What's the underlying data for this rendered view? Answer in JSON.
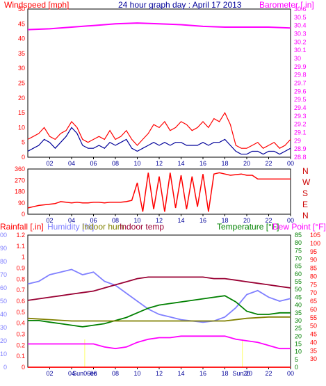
{
  "title": "24 hour graph day : April 17 2013",
  "colors": {
    "wind": "#ff0000",
    "wind_avg": "#000099",
    "baro": "#ff00ff",
    "rain": "#ff0000",
    "humidity": "#8080ff",
    "indoor_hum": "#808000",
    "indoor_temp": "#990033",
    "temperature": "#008000",
    "dew": "#ff00ff",
    "sunrise": "#ffff66",
    "frame": "#000000"
  },
  "x_ticks": [
    "02",
    "04",
    "06",
    "08",
    "10",
    "12",
    "14",
    "16",
    "18",
    "20",
    "22",
    "00"
  ],
  "chart_data": [
    {
      "type": "line",
      "labels": {
        "left": "Windspeed [mph]",
        "right": "Barometer [ in]"
      },
      "y_left": {
        "min": 0,
        "max": 50,
        "ticks": [
          0,
          5,
          10,
          15,
          20,
          25,
          30,
          35,
          40,
          45,
          50
        ]
      },
      "y_right": {
        "min": 28.8,
        "max": 30.6,
        "ticks": [
          "28.8",
          "28.9",
          "29",
          "29.1",
          "29.2",
          "29.3",
          "29.4",
          "29.5",
          "29.6",
          "29.7",
          "29.8",
          "29.9",
          "30",
          "30.1",
          "30.2",
          "30.3",
          "30.4",
          "30.5",
          "30.6"
        ]
      },
      "series": [
        {
          "key": "wind_gust",
          "axis": "left",
          "x": [
            0,
            0.5,
            1,
            1.5,
            2,
            2.5,
            3,
            3.5,
            4,
            4.5,
            5,
            5.5,
            6,
            6.5,
            7,
            7.5,
            8,
            8.5,
            9,
            9.5,
            10,
            10.5,
            11,
            11.5,
            12,
            12.5,
            13,
            13.5,
            14,
            14.5,
            15,
            15.5,
            16,
            16.5,
            17,
            17.5,
            18,
            18.5,
            19,
            19.5,
            20,
            20.5,
            21,
            21.5,
            22,
            22.5,
            23,
            23.5,
            24
          ],
          "values": [
            6,
            7,
            8,
            10,
            7,
            6,
            8,
            9,
            12,
            10,
            6,
            5,
            6,
            7,
            6,
            9,
            6,
            7,
            9,
            6,
            4,
            6,
            8,
            11,
            10,
            12,
            9,
            10,
            12,
            11,
            9,
            10,
            12,
            10,
            13,
            12,
            15,
            11,
            4,
            3,
            3,
            4,
            5,
            3,
            4,
            5,
            3,
            4,
            6
          ]
        },
        {
          "key": "wind_avg",
          "axis": "left",
          "x": [
            0,
            0.5,
            1,
            1.5,
            2,
            2.5,
            3,
            3.5,
            4,
            4.5,
            5,
            5.5,
            6,
            6.5,
            7,
            7.5,
            8,
            8.5,
            9,
            9.5,
            10,
            10.5,
            11,
            11.5,
            12,
            12.5,
            13,
            13.5,
            14,
            14.5,
            15,
            15.5,
            16,
            16.5,
            17,
            17.5,
            18,
            18.5,
            19,
            19.5,
            20,
            20.5,
            21,
            21.5,
            22,
            22.5,
            23,
            23.5,
            24
          ],
          "values": [
            2,
            3,
            4,
            6,
            5,
            3,
            5,
            7,
            10,
            8,
            4,
            3,
            3,
            4,
            3,
            5,
            4,
            5,
            6,
            3,
            2,
            3,
            4,
            5,
            4,
            5,
            4,
            5,
            5,
            4,
            4,
            4,
            5,
            4,
            5,
            5,
            6,
            4,
            2,
            1,
            1,
            2,
            2,
            1,
            2,
            2,
            1,
            2,
            3
          ]
        },
        {
          "key": "barometer",
          "axis": "right",
          "x": [
            0,
            2,
            4,
            6,
            8,
            10,
            12,
            14,
            16,
            18,
            20,
            22,
            24
          ],
          "values": [
            30.35,
            30.36,
            30.38,
            30.4,
            30.42,
            30.43,
            30.42,
            30.41,
            30.39,
            30.38,
            30.38,
            30.38,
            30.37
          ]
        }
      ]
    },
    {
      "type": "line",
      "labels": {
        "left": ""
      },
      "y_left": {
        "min": 0,
        "max": 360,
        "ticks": [
          0,
          90,
          180,
          270,
          360
        ]
      },
      "compass": [
        "N",
        "W",
        "S",
        "E",
        "N"
      ],
      "series": [
        {
          "key": "wind_dir",
          "x": [
            0,
            0.5,
            1,
            1.5,
            2,
            2.5,
            3,
            3.5,
            4,
            4.5,
            5,
            5.5,
            6,
            6.5,
            7,
            7.5,
            8,
            8.5,
            9,
            9.5,
            10,
            10.5,
            11,
            11.5,
            12,
            12.5,
            13,
            13.5,
            14,
            14.5,
            15,
            15.5,
            16,
            16.5,
            17,
            17.5,
            18,
            18.5,
            19,
            19.5,
            20,
            20.5,
            21,
            21.5,
            22,
            22.5,
            23,
            23.5,
            24
          ],
          "values": [
            50,
            60,
            70,
            75,
            80,
            85,
            100,
            95,
            90,
            95,
            90,
            90,
            95,
            95,
            90,
            95,
            95,
            95,
            100,
            110,
            250,
            20,
            330,
            40,
            300,
            20,
            330,
            50,
            310,
            40,
            300,
            60,
            320,
            20,
            320,
            330,
            320,
            310,
            315,
            320,
            310,
            310,
            280,
            280,
            280,
            280,
            280,
            280,
            280
          ]
        }
      ]
    },
    {
      "type": "line",
      "labels": {
        "rain": "Rainfall [.in]",
        "humidity": "Humidity [%]",
        "indoor_hum": "Indoor hum",
        "indoor_temp": "Indoor temp",
        "temperature": "Temperature [°F]",
        "dew": "Dew Point [°F]"
      },
      "y_rain": {
        "min": 0,
        "max": 1.2,
        "ticks": [
          "0",
          "0.1",
          "0.2",
          "0.3",
          "0.4",
          "0.5",
          "0.6",
          "0.7",
          "0.8",
          "0.9",
          "1",
          "1.1",
          "1.2"
        ]
      },
      "y_hum": {
        "min": 0,
        "max": 100,
        "ticks": [
          0,
          10,
          20,
          30,
          40,
          50,
          60,
          70,
          80,
          90,
          100
        ]
      },
      "y_temp": {
        "min": 0,
        "max": 85,
        "ticks": [
          0,
          5,
          10,
          15,
          20,
          25,
          30,
          35,
          40,
          45,
          50,
          55,
          60,
          65,
          70,
          75,
          80,
          85
        ]
      },
      "y_dew": {
        "min": 25,
        "max": 105,
        "ticks": [
          30,
          35,
          40,
          45,
          50,
          55,
          60,
          65,
          70,
          75,
          80,
          85,
          90,
          95,
          100,
          105
        ]
      },
      "markers": [
        {
          "text": "Sun06ec",
          "x": 5.2
        },
        {
          "text": "Sun 20",
          "x": 19.6
        }
      ],
      "series": [
        {
          "key": "humidity",
          "axis": "hum",
          "x": [
            0,
            1,
            2,
            3,
            4,
            5,
            6,
            7,
            8,
            9,
            10,
            11,
            12,
            13,
            14,
            15,
            16,
            17,
            18,
            19,
            20,
            21,
            22,
            23,
            24
          ],
          "values": [
            63,
            65,
            70,
            72,
            74,
            70,
            72,
            65,
            62,
            56,
            50,
            44,
            40,
            38,
            36,
            35,
            34,
            35,
            38,
            45,
            55,
            58,
            53,
            50,
            52
          ]
        },
        {
          "key": "indoor_temp",
          "axis": "temp",
          "x": [
            0,
            1,
            2,
            3,
            4,
            5,
            6,
            7,
            8,
            9,
            10,
            11,
            12,
            13,
            14,
            15,
            16,
            17,
            18,
            19,
            20,
            21,
            22,
            23,
            24
          ],
          "values": [
            43,
            44,
            45,
            46,
            47,
            48,
            49,
            51,
            53,
            55,
            57,
            58,
            58,
            58,
            58,
            58,
            58,
            57,
            57,
            56,
            55,
            54,
            53,
            52,
            51
          ]
        },
        {
          "key": "temperature",
          "axis": "temp",
          "x": [
            0,
            1,
            2,
            3,
            4,
            5,
            6,
            7,
            8,
            9,
            10,
            11,
            12,
            13,
            14,
            15,
            16,
            17,
            18,
            19,
            20,
            21,
            22,
            23,
            24
          ],
          "values": [
            30,
            30,
            29,
            28,
            27,
            26,
            27,
            28,
            30,
            32,
            35,
            38,
            40,
            41,
            42,
            43,
            44,
            45,
            46,
            42,
            36,
            34,
            34,
            35,
            35
          ]
        },
        {
          "key": "indoor_hum",
          "axis": "hum",
          "x": [
            0,
            2,
            4,
            6,
            8,
            10,
            12,
            14,
            16,
            18,
            20,
            22,
            24
          ],
          "values": [
            37,
            36,
            35,
            35,
            35,
            35,
            35,
            35,
            35,
            35,
            37,
            38,
            38
          ]
        },
        {
          "key": "dew",
          "axis": "temp",
          "x": [
            0,
            1,
            2,
            3,
            4,
            5,
            6,
            7,
            8,
            9,
            10,
            11,
            12,
            13,
            14,
            15,
            16,
            17,
            18,
            19,
            20,
            21,
            22,
            23,
            24
          ],
          "values": [
            15,
            15,
            15,
            15,
            15,
            15,
            15,
            13,
            12,
            13,
            16,
            18,
            19,
            19,
            20,
            20,
            20,
            20,
            20,
            18,
            17,
            16,
            14,
            12,
            12
          ]
        },
        {
          "key": "rain",
          "axis": "rain",
          "x": [
            0,
            24
          ],
          "values": [
            0,
            0
          ]
        }
      ]
    }
  ]
}
